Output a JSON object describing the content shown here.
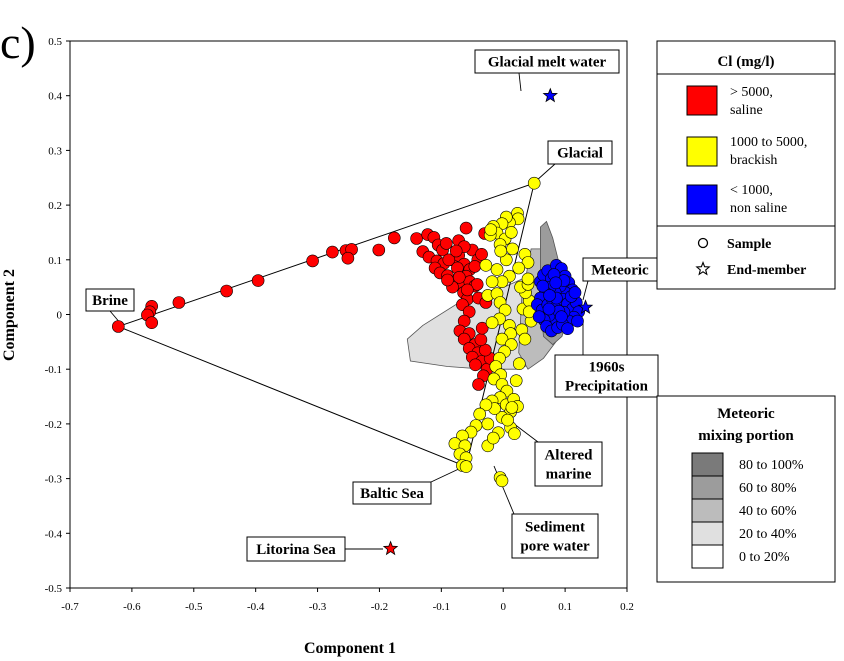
{
  "chart_data": {
    "type": "scatter",
    "panel_label": "c)",
    "title": "",
    "xlabel": "Component 1",
    "ylabel": "Component 2",
    "xlim": [
      -0.7,
      0.2
    ],
    "ylim": [
      -0.5,
      0.5
    ],
    "x_ticks": [
      -0.7,
      -0.6,
      -0.5,
      -0.4,
      -0.3,
      -0.2,
      -0.1,
      0,
      0.1,
      0.2
    ],
    "x_tick_labels": [
      "-0.7",
      "-0.6",
      "-0.5",
      "-0.4",
      "-0.3",
      "-0.2",
      "-0.1",
      "0",
      "0.1",
      "0.2"
    ],
    "y_ticks": [
      -0.5,
      -0.4,
      -0.3,
      -0.2,
      -0.1,
      0,
      0.1,
      0.2,
      0.3,
      0.4,
      0.5
    ],
    "y_tick_labels": [
      "-0.5",
      "-0.4",
      "-0.3",
      "-0.2",
      "-0.1",
      "0",
      "0.1",
      "0.2",
      "0.3",
      "0.4",
      "0.5"
    ],
    "grid": false,
    "colors": {
      "saline": "#ff0000",
      "brackish": "#ffff00",
      "non_saline": "#0000ff"
    },
    "legend_cl": {
      "title": "Cl (mg/l)",
      "entries": [
        {
          "line1": "> 5000,",
          "line2": "saline",
          "color": "#ff0000"
        },
        {
          "line1": "1000 to 5000,",
          "line2": "brackish",
          "color": "#ffff00"
        },
        {
          "line1": "< 1000,",
          "line2": "non saline",
          "color": "#0000ff"
        }
      ],
      "markers": [
        {
          "symbol": "circle",
          "label": "Sample"
        },
        {
          "symbol": "star",
          "label": "End-member"
        }
      ]
    },
    "legend_mixing": {
      "title_line1": "Meteoric",
      "title_line2": "mixing portion",
      "entries": [
        {
          "label": "80 to 100%",
          "color": "#7a7a7a"
        },
        {
          "label": "60 to 80%",
          "color": "#9c9c9c"
        },
        {
          "label": "40 to 60%",
          "color": "#bcbcbc"
        },
        {
          "label": "20 to 40%",
          "color": "#e0e0e0"
        },
        {
          "label": "0 to 20%",
          "color": "#ffffff"
        }
      ]
    },
    "end_members": [
      {
        "name": "Brine",
        "x": -0.622,
        "y": -0.022,
        "marker": "circle",
        "color": "#ff0000"
      },
      {
        "name": "Glacial",
        "x": 0.05,
        "y": 0.24,
        "marker": "circle",
        "color": "#ffff00"
      },
      {
        "name": "Baltic Sea",
        "x": -0.06,
        "y": -0.278,
        "marker": "circle",
        "color": "#ffff00"
      },
      {
        "name": "Meteoric",
        "x": 0.133,
        "y": 0.013,
        "marker": "star",
        "color": "#0000ff"
      },
      {
        "name": "Glacial melt water",
        "x": 0.076,
        "y": 0.4,
        "marker": "star",
        "color": "#0000ff"
      },
      {
        "name": "Litorina Sea",
        "x": -0.182,
        "y": -0.428,
        "marker": "star",
        "color": "#ff0000"
      }
    ],
    "annotations": [
      {
        "text": "Glacial melt water",
        "lines": [
          "Glacial melt water"
        ]
      },
      {
        "text": "Glacial",
        "lines": [
          "Glacial"
        ]
      },
      {
        "text": "Brine",
        "lines": [
          "Brine"
        ]
      },
      {
        "text": "Meteoric",
        "lines": [
          "Meteoric"
        ]
      },
      {
        "text": "1960s Precipitation",
        "lines": [
          "1960s",
          "Precipitation"
        ]
      },
      {
        "text": "Altered marine",
        "lines": [
          "Altered",
          "marine"
        ]
      },
      {
        "text": "Baltic Sea",
        "lines": [
          "Baltic Sea"
        ]
      },
      {
        "text": "Sediment pore water",
        "lines": [
          "Sediment",
          "pore water"
        ]
      },
      {
        "text": "Litorina Sea",
        "lines": [
          "Litorina Sea"
        ]
      }
    ],
    "triangle": [
      [
        -0.622,
        -0.022
      ],
      [
        0.05,
        0.24
      ],
      [
        -0.06,
        -0.278
      ]
    ],
    "mixing_zones": [
      {
        "portion": "20 to 40%",
        "color": "#e0e0e0",
        "polygon": [
          [
            -0.155,
            -0.045
          ],
          [
            -0.13,
            -0.02
          ],
          [
            -0.06,
            0.03
          ],
          [
            0.005,
            0.052
          ],
          [
            0.05,
            0.075
          ],
          [
            0.075,
            0.075
          ],
          [
            0.085,
            0.04
          ],
          [
            0.09,
            0.0
          ],
          [
            0.082,
            -0.04
          ],
          [
            0.065,
            -0.075
          ],
          [
            0.045,
            -0.09
          ],
          [
            0.025,
            -0.1
          ],
          [
            -0.03,
            -0.1
          ],
          [
            -0.09,
            -0.095
          ],
          [
            -0.15,
            -0.085
          ]
        ]
      },
      {
        "portion": "40 to 60%",
        "color": "#bcbcbc",
        "polygon": [
          [
            0.025,
            -0.07
          ],
          [
            0.03,
            0.03
          ],
          [
            0.045,
            0.12
          ],
          [
            0.06,
            0.12
          ],
          [
            0.08,
            0.08
          ],
          [
            0.1,
            0.0
          ],
          [
            0.085,
            -0.05
          ],
          [
            0.065,
            -0.08
          ],
          [
            0.04,
            -0.1
          ]
        ]
      },
      {
        "portion": "60 to 80%",
        "color": "#9c9c9c",
        "polygon": [
          [
            0.06,
            0.16
          ],
          [
            0.07,
            0.17
          ],
          [
            0.08,
            0.14
          ],
          [
            0.1,
            0.05
          ],
          [
            0.105,
            0.0
          ],
          [
            0.095,
            -0.04
          ],
          [
            0.08,
            -0.055
          ],
          [
            0.065,
            -0.04
          ],
          [
            0.06,
            0.02
          ],
          [
            0.06,
            0.1
          ]
        ]
      }
    ],
    "series": [
      {
        "name": "> 5000, saline",
        "color": "#ff0000",
        "points": [
          [
            -0.568,
            0.015
          ],
          [
            -0.571,
            0.005
          ],
          [
            -0.575,
            -0.001
          ],
          [
            -0.568,
            -0.015
          ],
          [
            -0.524,
            0.022
          ],
          [
            -0.447,
            0.043
          ],
          [
            -0.396,
            0.062
          ],
          [
            -0.308,
            0.098
          ],
          [
            -0.276,
            0.114
          ],
          [
            -0.254,
            0.117
          ],
          [
            -0.245,
            0.119
          ],
          [
            -0.251,
            0.103
          ],
          [
            -0.201,
            0.118
          ],
          [
            -0.176,
            0.14
          ],
          [
            -0.14,
            0.139
          ],
          [
            -0.122,
            0.146
          ],
          [
            -0.112,
            0.141
          ],
          [
            -0.105,
            0.127
          ],
          [
            -0.098,
            0.118
          ],
          [
            -0.13,
            0.115
          ],
          [
            -0.12,
            0.105
          ],
          [
            -0.107,
            0.098
          ],
          [
            -0.096,
            0.093
          ],
          [
            -0.083,
            0.1
          ],
          [
            -0.072,
            0.108
          ],
          [
            -0.063,
            0.092
          ],
          [
            -0.11,
            0.085
          ],
          [
            -0.102,
            0.076
          ],
          [
            -0.09,
            0.071
          ],
          [
            -0.078,
            0.06
          ],
          [
            -0.066,
            0.05
          ],
          [
            -0.088,
            0.1
          ],
          [
            -0.074,
            0.085
          ],
          [
            -0.054,
            0.082
          ],
          [
            -0.06,
            0.07
          ],
          [
            -0.092,
            0.13
          ],
          [
            -0.072,
            0.135
          ],
          [
            -0.05,
            0.118
          ],
          [
            -0.063,
            0.124
          ],
          [
            -0.076,
            0.116
          ],
          [
            -0.041,
            0.1
          ],
          [
            -0.046,
            0.088
          ],
          [
            -0.054,
            0.06
          ],
          [
            -0.046,
            0.052
          ],
          [
            -0.064,
            0.04
          ],
          [
            -0.058,
            0.028
          ],
          [
            -0.066,
            0.018
          ],
          [
            -0.055,
            0.005
          ],
          [
            -0.063,
            -0.012
          ],
          [
            -0.07,
            -0.03
          ],
          [
            -0.055,
            -0.035
          ],
          [
            -0.063,
            -0.045
          ],
          [
            -0.046,
            -0.055
          ],
          [
            -0.055,
            -0.062
          ],
          [
            -0.041,
            -0.07
          ],
          [
            -0.05,
            -0.078
          ],
          [
            -0.035,
            -0.086
          ],
          [
            -0.045,
            -0.092
          ],
          [
            -0.026,
            -0.1
          ],
          [
            -0.032,
            -0.112
          ],
          [
            -0.04,
            -0.128
          ],
          [
            -0.021,
            -0.08
          ],
          [
            -0.029,
            -0.065
          ],
          [
            -0.036,
            -0.046
          ],
          [
            -0.04,
            0.03
          ],
          [
            -0.028,
            0.022
          ],
          [
            -0.035,
            0.11
          ],
          [
            -0.06,
            0.158
          ],
          [
            -0.03,
            0.148
          ],
          [
            -0.042,
            0.055
          ],
          [
            -0.071,
            0.068
          ],
          [
            -0.082,
            0.05
          ],
          [
            -0.09,
            0.063
          ],
          [
            -0.058,
            0.045
          ],
          [
            -0.034,
            -0.025
          ]
        ]
      },
      {
        "name": "1000 to 5000, brackish",
        "color": "#ffff00",
        "points": [
          [
            0.023,
            0.185
          ],
          [
            0.024,
            0.175
          ],
          [
            0.01,
            0.168
          ],
          [
            0.005,
            0.178
          ],
          [
            -0.002,
            0.166
          ],
          [
            -0.016,
            0.161
          ],
          [
            -0.01,
            0.149
          ],
          [
            -0.021,
            0.145
          ],
          [
            0.003,
            0.138
          ],
          [
            -0.005,
            0.128
          ],
          [
            0.015,
            0.12
          ],
          [
            0.035,
            0.11
          ],
          [
            0.04,
            0.095
          ],
          [
            0.025,
            0.085
          ],
          [
            0.01,
            0.07
          ],
          [
            -0.002,
            0.06
          ],
          [
            0.005,
            0.1
          ],
          [
            -0.01,
            0.082
          ],
          [
            -0.028,
            0.09
          ],
          [
            -0.018,
            0.06
          ],
          [
            -0.025,
            0.035
          ],
          [
            -0.01,
            0.038
          ],
          [
            -0.005,
            0.022
          ],
          [
            0.003,
            0.008
          ],
          [
            -0.006,
            -0.008
          ],
          [
            -0.018,
            -0.015
          ],
          [
            0.01,
            -0.02
          ],
          [
            0.032,
            0.01
          ],
          [
            0.042,
            0.025
          ],
          [
            0.036,
            0.04
          ],
          [
            0.028,
            0.05
          ],
          [
            0.04,
            0.055
          ],
          [
            0.045,
            -0.012
          ],
          [
            0.03,
            -0.028
          ],
          [
            0.012,
            -0.035
          ],
          [
            -0.002,
            -0.045
          ],
          [
            0.013,
            -0.055
          ],
          [
            0.002,
            -0.068
          ],
          [
            -0.006,
            -0.08
          ],
          [
            -0.012,
            -0.095
          ],
          [
            -0.004,
            -0.11
          ],
          [
            -0.015,
            -0.118
          ],
          [
            -0.002,
            -0.128
          ],
          [
            0.006,
            -0.14
          ],
          [
            -0.005,
            -0.152
          ],
          [
            -0.018,
            -0.158
          ],
          [
            0.005,
            -0.165
          ],
          [
            0.012,
            -0.178
          ],
          [
            -0.002,
            -0.188
          ],
          [
            -0.014,
            -0.172
          ],
          [
            -0.028,
            -0.165
          ],
          [
            -0.038,
            -0.182
          ],
          [
            -0.025,
            -0.2
          ],
          [
            -0.044,
            -0.203
          ],
          [
            -0.052,
            -0.215
          ],
          [
            -0.066,
            -0.222
          ],
          [
            -0.078,
            -0.236
          ],
          [
            -0.062,
            -0.24
          ],
          [
            -0.07,
            -0.255
          ],
          [
            -0.06,
            -0.262
          ],
          [
            -0.066,
            -0.276
          ],
          [
            -0.025,
            -0.24
          ],
          [
            0.012,
            -0.207
          ],
          [
            0.018,
            -0.218
          ],
          [
            0.007,
            -0.193
          ],
          [
            -0.008,
            -0.216
          ],
          [
            -0.016,
            -0.226
          ],
          [
            -0.005,
            -0.298
          ],
          [
            -0.002,
            -0.304
          ],
          [
            0.017,
            -0.155
          ],
          [
            0.023,
            -0.168
          ],
          [
            0.014,
            -0.17
          ],
          [
            0.021,
            -0.121
          ],
          [
            0.026,
            -0.09
          ],
          [
            0.035,
            -0.045
          ],
          [
            0.04,
            0.065
          ],
          [
            0.042,
            0.005
          ],
          [
            -0.004,
            0.116
          ],
          [
            -0.02,
            0.155
          ],
          [
            0.013,
            0.15
          ]
        ]
      },
      {
        "name": "< 1000, non saline",
        "color": "#0000ff",
        "points": [
          [
            0.06,
            0.06
          ],
          [
            0.065,
            0.072
          ],
          [
            0.072,
            0.08
          ],
          [
            0.078,
            0.066
          ],
          [
            0.086,
            0.09
          ],
          [
            0.094,
            0.084
          ],
          [
            0.1,
            0.07
          ],
          [
            0.106,
            0.058
          ],
          [
            0.112,
            0.045
          ],
          [
            0.1,
            0.04
          ],
          [
            0.092,
            0.052
          ],
          [
            0.084,
            0.04
          ],
          [
            0.076,
            0.05
          ],
          [
            0.068,
            0.04
          ],
          [
            0.06,
            0.03
          ],
          [
            0.055,
            0.018
          ],
          [
            0.063,
            0.008
          ],
          [
            0.072,
            0.018
          ],
          [
            0.08,
            0.026
          ],
          [
            0.088,
            0.018
          ],
          [
            0.096,
            0.028
          ],
          [
            0.104,
            0.02
          ],
          [
            0.112,
            0.01
          ],
          [
            0.118,
            0.022
          ],
          [
            0.122,
            0.005
          ],
          [
            0.114,
            -0.005
          ],
          [
            0.106,
            -0.012
          ],
          [
            0.098,
            0.004
          ],
          [
            0.09,
            -0.004
          ],
          [
            0.082,
            -0.01
          ],
          [
            0.074,
            -0.002
          ],
          [
            0.066,
            -0.01
          ],
          [
            0.058,
            -0.004
          ],
          [
            0.07,
            -0.022
          ],
          [
            0.078,
            -0.03
          ],
          [
            0.088,
            -0.024
          ],
          [
            0.096,
            -0.018
          ],
          [
            0.104,
            -0.026
          ],
          [
            0.098,
            0.062
          ],
          [
            0.082,
            0.073
          ],
          [
            0.09,
            0.006
          ],
          [
            0.11,
            0.033
          ],
          [
            0.086,
            0.03
          ],
          [
            0.074,
            0.01
          ],
          [
            0.064,
            0.052
          ],
          [
            0.116,
            0.04
          ],
          [
            0.12,
            -0.012
          ],
          [
            0.094,
            -0.004
          ],
          [
            0.085,
            0.058
          ],
          [
            0.075,
            0.035
          ]
        ]
      }
    ]
  }
}
